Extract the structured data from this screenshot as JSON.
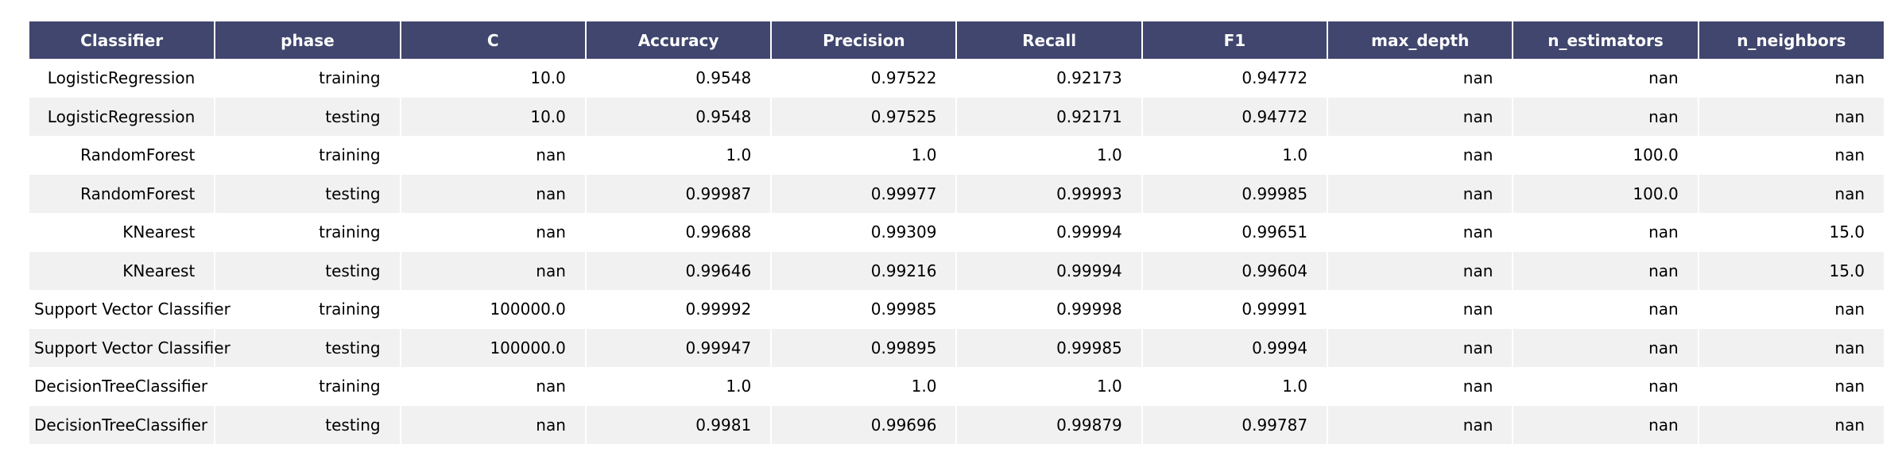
{
  "chart_data": {
    "type": "table",
    "header_color": "#40466e",
    "header_text_color": "#ffffff",
    "stripe_color": "#f1f1f2",
    "columns": [
      "Classifier",
      "phase",
      "C",
      "Accuracy",
      "Precision",
      "Recall",
      "F1",
      "max_depth",
      "n_estimators",
      "n_neighbors"
    ],
    "rows": [
      [
        "LogisticRegression",
        "training",
        "10.0",
        "0.9548",
        "0.97522",
        "0.92173",
        "0.94772",
        "nan",
        "nan",
        "nan"
      ],
      [
        "LogisticRegression",
        "testing",
        "10.0",
        "0.9548",
        "0.97525",
        "0.92171",
        "0.94772",
        "nan",
        "nan",
        "nan"
      ],
      [
        "RandomForest",
        "training",
        "nan",
        "1.0",
        "1.0",
        "1.0",
        "1.0",
        "nan",
        "100.0",
        "nan"
      ],
      [
        "RandomForest",
        "testing",
        "nan",
        "0.99987",
        "0.99977",
        "0.99993",
        "0.99985",
        "nan",
        "100.0",
        "nan"
      ],
      [
        "KNearest",
        "training",
        "nan",
        "0.99688",
        "0.99309",
        "0.99994",
        "0.99651",
        "nan",
        "nan",
        "15.0"
      ],
      [
        "KNearest",
        "testing",
        "nan",
        "0.99646",
        "0.99216",
        "0.99994",
        "0.99604",
        "nan",
        "nan",
        "15.0"
      ],
      [
        "Support Vector Classifier",
        "training",
        "100000.0",
        "0.99992",
        "0.99985",
        "0.99998",
        "0.99991",
        "nan",
        "nan",
        "nan"
      ],
      [
        "Support Vector Classifier",
        "testing",
        "100000.0",
        "0.99947",
        "0.99895",
        "0.99985",
        "0.9994",
        "nan",
        "nan",
        "nan"
      ],
      [
        "DecisionTreeClassifier",
        "training",
        "nan",
        "1.0",
        "1.0",
        "1.0",
        "1.0",
        "nan",
        "nan",
        "nan"
      ],
      [
        "DecisionTreeClassifier",
        "testing",
        "nan",
        "0.9981",
        "0.99696",
        "0.99879",
        "0.99787",
        "nan",
        "nan",
        "nan"
      ]
    ]
  }
}
